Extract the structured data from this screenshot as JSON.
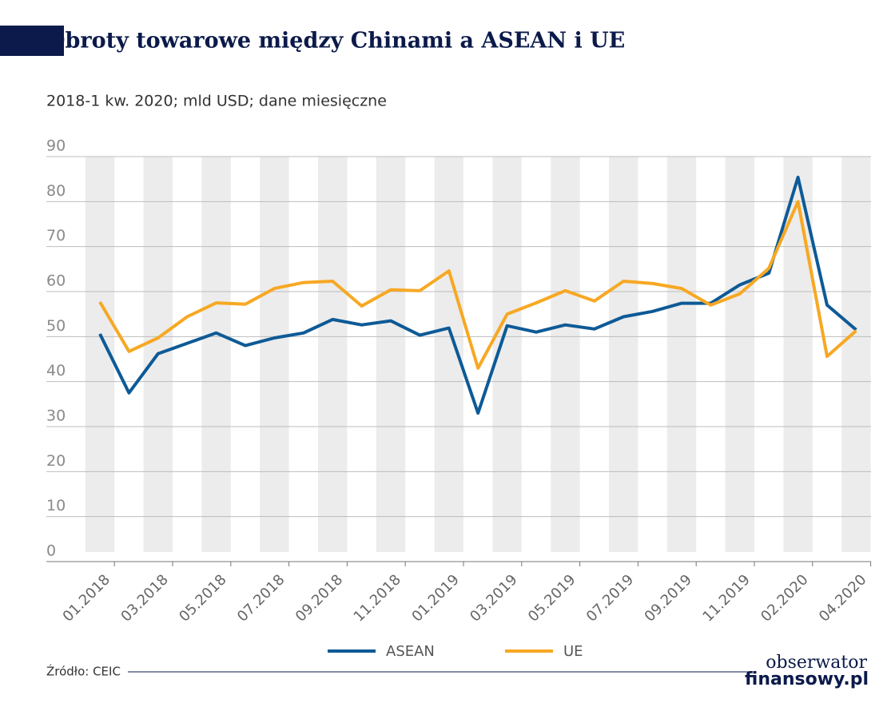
{
  "chart_data": {
    "type": "line",
    "title": "Obroty towarowe między Chinami a ASEAN i UE",
    "subtitle": "2018-1 kw. 2020; mld USD; dane miesięczne",
    "categories": [
      "01.2018",
      null,
      "03.2018",
      null,
      "05.2018",
      null,
      "07.2018",
      null,
      "09.2018",
      null,
      "11.2018",
      null,
      "01.2019",
      null,
      "03.2019",
      null,
      "05.2019",
      null,
      "07.2019",
      null,
      "09.2019",
      null,
      "11.2019",
      null,
      "02.2020",
      null,
      "04.2020"
    ],
    "series": [
      {
        "name": "ASEAN",
        "color": "#0d5a96",
        "values": [
          50.6,
          37.5,
          46.2,
          48.5,
          50.8,
          48,
          49.7,
          50.8,
          53.8,
          52.6,
          53.5,
          50.3,
          51.9,
          33,
          52.4,
          51,
          52.6,
          51.7,
          54.4,
          55.6,
          57.4,
          57.4,
          61.5,
          64.1,
          85.4,
          57,
          51.5
        ]
      },
      {
        "name": "UE",
        "color": "#f7a823",
        "values": [
          57.7,
          46.7,
          49.7,
          54.4,
          57.5,
          57.2,
          60.7,
          62,
          62.3,
          56.8,
          60.4,
          60.2,
          64.6,
          43,
          55,
          57.5,
          60.2,
          57.9,
          62.3,
          61.8,
          60.7,
          57,
          59.5,
          65.2,
          80,
          45.6,
          51.3
        ]
      }
    ],
    "ylim": [
      0,
      90
    ],
    "yticks": [
      0,
      10,
      20,
      30,
      40,
      50,
      60,
      70,
      80,
      90
    ],
    "grid": true,
    "source": "Źródło: CEIC",
    "logo": [
      "obserwator",
      "finansowy.pl"
    ]
  }
}
